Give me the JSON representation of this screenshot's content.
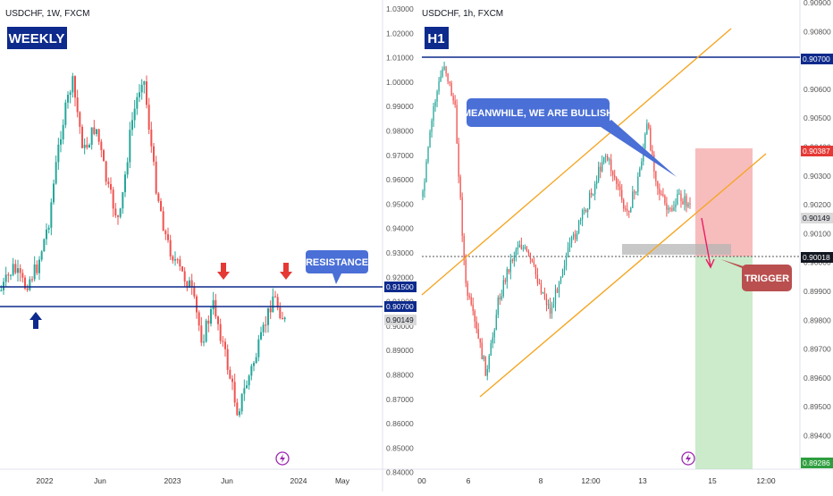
{
  "left_panel": {
    "symbol_line": "USDCHF, 1W, FXCM",
    "timeframe_badge": "WEEKLY",
    "callout": "RESISTANCE",
    "price_ticks": [
      "1.03000",
      "1.02000",
      "1.01000",
      "1.00000",
      "0.99000",
      "0.98000",
      "0.97000",
      "0.96000",
      "0.95000",
      "0.94000",
      "0.93000",
      "0.92000",
      "0.91000",
      "0.90000",
      "0.89000",
      "0.88000",
      "0.87000",
      "0.86000",
      "0.85000",
      "0.84000"
    ],
    "price_tags": [
      {
        "label": "0.91500",
        "style": "navy"
      },
      {
        "label": "0.90700",
        "style": "navy"
      },
      {
        "label": "0.90149",
        "style": "gray"
      }
    ],
    "time_ticks": [
      "2022",
      "Jun",
      "2023",
      "Jun",
      "2024",
      "May"
    ]
  },
  "right_panel": {
    "symbol_line": "USDCHF, 1h, FXCM",
    "timeframe_badge": "H1",
    "callout_top": "MEANWHILE, WE ARE BULLISH",
    "callout_trigger": "TRIGGER",
    "price_ticks": [
      "0.90900",
      "0.90800",
      "0.90700",
      "0.90600",
      "0.90500",
      "0.90400",
      "0.90300",
      "0.90200",
      "0.90100",
      "0.90000",
      "0.89900",
      "0.89800",
      "0.89700",
      "0.89600",
      "0.89500",
      "0.89400",
      "0.89300"
    ],
    "price_tags": [
      {
        "label": "0.90700",
        "style": "navy"
      },
      {
        "label": "0.90387",
        "style": "red"
      },
      {
        "label": "0.90149",
        "style": "gray"
      },
      {
        "label": "0.90018",
        "style": "dark"
      },
      {
        "label": "0.89286",
        "style": "green"
      }
    ],
    "time_ticks": [
      "00",
      "6",
      "8",
      "12:00",
      "13",
      "15",
      "12:00"
    ]
  },
  "colors": {
    "bull": "#26a69a",
    "bear": "#ef5350",
    "level_line": "#0d2a8c",
    "channel": "#f5a623",
    "callout_blue": "#4a6fd6",
    "trigger_red": "#b9504f",
    "risk_zone": "#f4a6a6",
    "target_zone": "#b9e4b9",
    "arrow_red": "#e53935",
    "arrow_navy": "#0d2a8c",
    "trigger_arrow": "#e91e63"
  },
  "icons": [
    "arrow-up-icon",
    "arrow-down-icon",
    "lightning-icon"
  ]
}
